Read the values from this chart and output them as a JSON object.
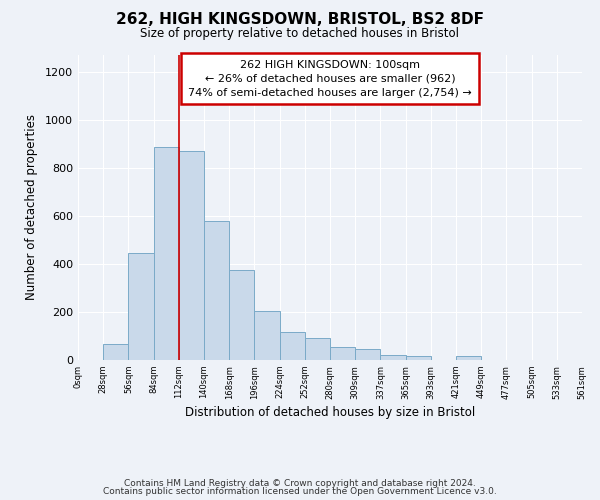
{
  "title": "262, HIGH KINGSDOWN, BRISTOL, BS2 8DF",
  "subtitle": "Size of property relative to detached houses in Bristol",
  "xlabel": "Distribution of detached houses by size in Bristol",
  "ylabel": "Number of detached properties",
  "bar_color": "#c9d9ea",
  "bar_edge_color": "#7aaac8",
  "bin_labels": [
    "0sqm",
    "28sqm",
    "56sqm",
    "84sqm",
    "112sqm",
    "140sqm",
    "168sqm",
    "196sqm",
    "224sqm",
    "252sqm",
    "280sqm",
    "309sqm",
    "337sqm",
    "365sqm",
    "393sqm",
    "421sqm",
    "449sqm",
    "477sqm",
    "505sqm",
    "533sqm",
    "561sqm"
  ],
  "bar_values": [
    0,
    65,
    445,
    885,
    870,
    580,
    375,
    205,
    115,
    90,
    55,
    45,
    20,
    15,
    0,
    15,
    0,
    0,
    0,
    0,
    5
  ],
  "ylim": [
    0,
    1270
  ],
  "yticks": [
    0,
    200,
    400,
    600,
    800,
    1000,
    1200
  ],
  "property_line_x": 4,
  "property_label": "262 HIGH KINGSDOWN: 100sqm",
  "annotation_line1": "← 26% of detached houses are smaller (962)",
  "annotation_line2": "74% of semi-detached houses are larger (2,754) →",
  "box_color": "#cc0000",
  "footer_line1": "Contains HM Land Registry data © Crown copyright and database right 2024.",
  "footer_line2": "Contains public sector information licensed under the Open Government Licence v3.0.",
  "background_color": "#eef2f8",
  "grid_color": "#ffffff"
}
